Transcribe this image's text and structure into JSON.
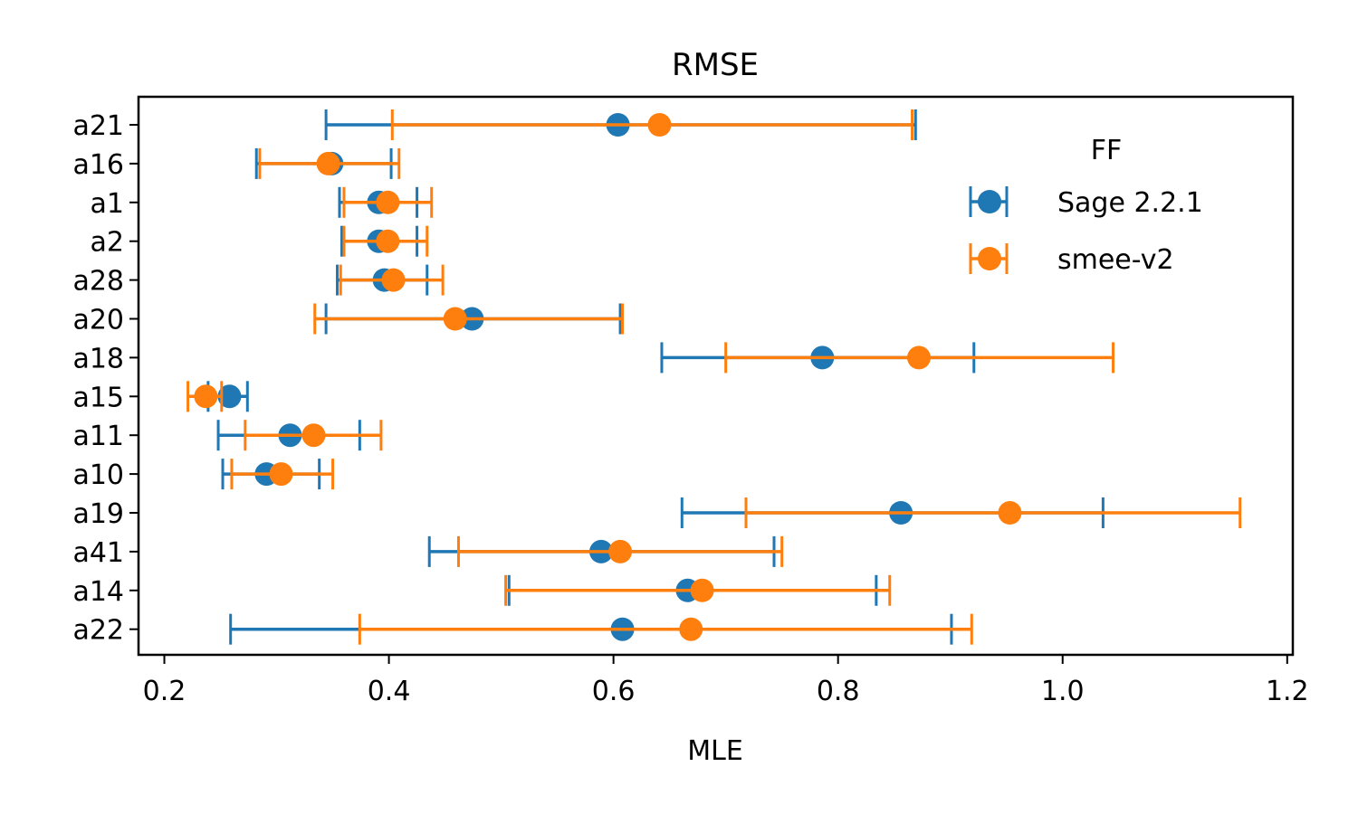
{
  "chart_data": {
    "type": "scatter",
    "title": "RMSE",
    "xlabel": "MLE",
    "ylabel": "",
    "xlim": [
      0.177,
      1.205
    ],
    "xticks": [
      0.2,
      0.4,
      0.6,
      0.8,
      1.0,
      1.2
    ],
    "xtick_labels": [
      "0.2",
      "0.4",
      "0.6",
      "0.8",
      "1.0",
      "1.2"
    ],
    "categories": [
      "a21",
      "a16",
      "a1",
      "a2",
      "a28",
      "a20",
      "a18",
      "a15",
      "a11",
      "a10",
      "a19",
      "a41",
      "a14",
      "a22"
    ],
    "legend": {
      "title": "FF",
      "position": "upper-right"
    },
    "grid": false,
    "series": [
      {
        "name": "Sage 2.2.1",
        "color": "#1f77b4",
        "values": [
          0.604,
          0.349,
          0.391,
          0.391,
          0.396,
          0.474,
          0.786,
          0.258,
          0.312,
          0.291,
          0.856,
          0.589,
          0.666,
          0.608
        ],
        "err_low": [
          0.344,
          0.282,
          0.356,
          0.358,
          0.354,
          0.344,
          0.643,
          0.239,
          0.248,
          0.252,
          0.661,
          0.436,
          0.507,
          0.259
        ],
        "err_high": [
          0.869,
          0.402,
          0.425,
          0.425,
          0.434,
          0.606,
          0.921,
          0.274,
          0.374,
          0.338,
          1.036,
          0.743,
          0.834,
          0.901
        ]
      },
      {
        "name": "smee-v2",
        "color": "#ff7f0e",
        "values": [
          0.641,
          0.346,
          0.399,
          0.399,
          0.404,
          0.459,
          0.872,
          0.237,
          0.333,
          0.304,
          0.953,
          0.606,
          0.679,
          0.669
        ],
        "err_low": [
          0.403,
          0.285,
          0.36,
          0.36,
          0.357,
          0.334,
          0.7,
          0.221,
          0.272,
          0.26,
          0.718,
          0.462,
          0.504,
          0.374
        ],
        "err_high": [
          0.866,
          0.409,
          0.438,
          0.434,
          0.448,
          0.608,
          1.045,
          0.251,
          0.393,
          0.35,
          1.158,
          0.75,
          0.846,
          0.919
        ]
      }
    ]
  }
}
